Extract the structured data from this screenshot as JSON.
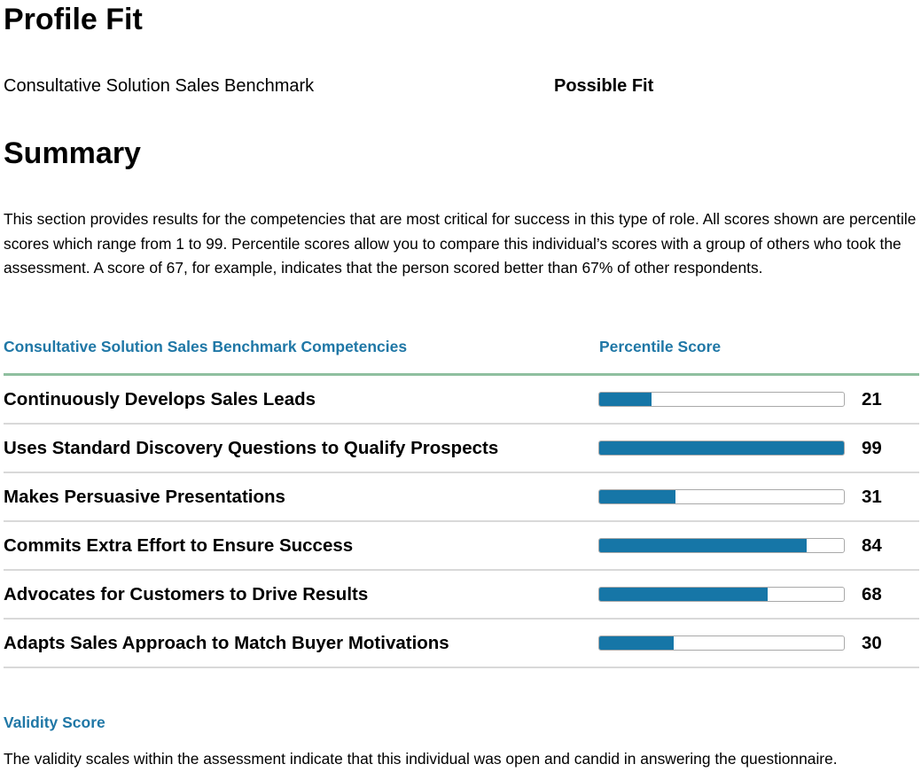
{
  "profile_fit": {
    "title": "Profile Fit",
    "benchmark_name": "Consultative Solution Sales Benchmark",
    "fit_result": "Possible Fit"
  },
  "summary": {
    "title": "Summary",
    "description": "This section provides results for the competencies that are most critical for success in this type of role. All scores shown are percentile scores which range from 1 to 99. Percentile scores allow you to compare this individual’s scores with a group of others who took the assessment. A score of 67, for example, indicates that the person scored better than 67% of other respondents."
  },
  "competency_table": {
    "column_competencies": "Consultative Solution Sales Benchmark Competencies",
    "column_score": "Percentile Score",
    "max_score": 99,
    "bar_color": "#1676a7",
    "rows": [
      {
        "name": "Continuously Develops Sales Leads",
        "score": 21
      },
      {
        "name": "Uses Standard Discovery Questions to Qualify Prospects",
        "score": 99
      },
      {
        "name": "Makes Persuasive Presentations",
        "score": 31
      },
      {
        "name": "Commits Extra Effort to Ensure Success",
        "score": 84
      },
      {
        "name": "Advocates for Customers to Drive Results",
        "score": 68
      },
      {
        "name": "Adapts Sales Approach to Match Buyer Motivations",
        "score": 30
      }
    ]
  },
  "validity": {
    "title": "Validity Score",
    "text": "The validity scales within the assessment indicate that this individual was open and candid in answering the questionnaire."
  }
}
